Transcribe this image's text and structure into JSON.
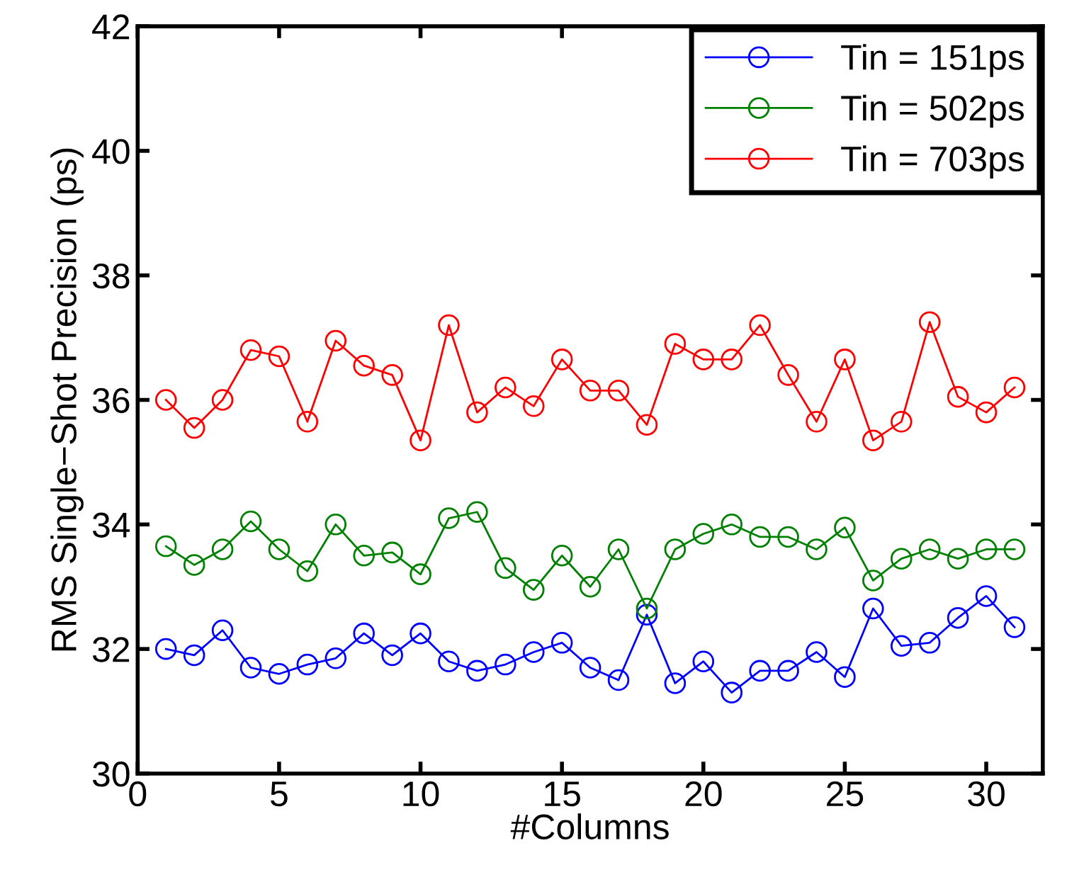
{
  "chart_data": {
    "type": "line",
    "xlabel": "#Columns",
    "ylabel": "RMS Single−Shot Precision (ps)",
    "x": [
      1,
      2,
      3,
      4,
      5,
      6,
      7,
      8,
      9,
      10,
      11,
      12,
      13,
      14,
      15,
      16,
      17,
      18,
      19,
      20,
      21,
      22,
      23,
      24,
      25,
      26,
      27,
      28,
      29,
      30,
      31
    ],
    "series": [
      {
        "name": "Tin = 151ps",
        "color": "#0000ff",
        "values": [
          32.0,
          31.9,
          32.3,
          31.7,
          31.6,
          31.75,
          31.85,
          32.25,
          31.9,
          32.25,
          31.8,
          31.65,
          31.75,
          31.95,
          32.1,
          31.7,
          31.5,
          32.55,
          31.45,
          31.8,
          31.3,
          31.65,
          31.65,
          31.95,
          31.55,
          32.65,
          32.05,
          32.1,
          32.5,
          32.85,
          32.35
        ]
      },
      {
        "name": "Tin = 502ps",
        "color": "#008000",
        "values": [
          33.65,
          33.35,
          33.6,
          34.05,
          33.6,
          33.25,
          34.0,
          33.5,
          33.55,
          33.2,
          34.1,
          34.2,
          33.3,
          32.95,
          33.5,
          33.0,
          33.6,
          32.65,
          33.6,
          33.85,
          34.0,
          33.8,
          33.8,
          33.6,
          33.95,
          33.1,
          33.45,
          33.6,
          33.45,
          33.6,
          33.6
        ]
      },
      {
        "name": "Tin = 703ps",
        "color": "#ff0000",
        "values": [
          36.0,
          35.55,
          36.0,
          36.8,
          36.7,
          35.65,
          36.95,
          36.55,
          36.4,
          35.35,
          37.2,
          35.8,
          36.2,
          35.9,
          36.65,
          36.15,
          36.15,
          35.6,
          36.9,
          36.65,
          36.65,
          37.2,
          36.4,
          35.65,
          36.65,
          35.35,
          35.65,
          37.25,
          36.05,
          35.8,
          36.2
        ]
      }
    ],
    "xlim": [
      0,
      32
    ],
    "xticks": [
      0,
      5,
      10,
      15,
      20,
      25,
      30
    ],
    "ylim": [
      30,
      42
    ],
    "yticks": [
      30,
      32,
      34,
      36,
      38,
      40,
      42
    ],
    "grid": false,
    "legend": "top right",
    "marker": "circle",
    "line_style": "solid"
  }
}
